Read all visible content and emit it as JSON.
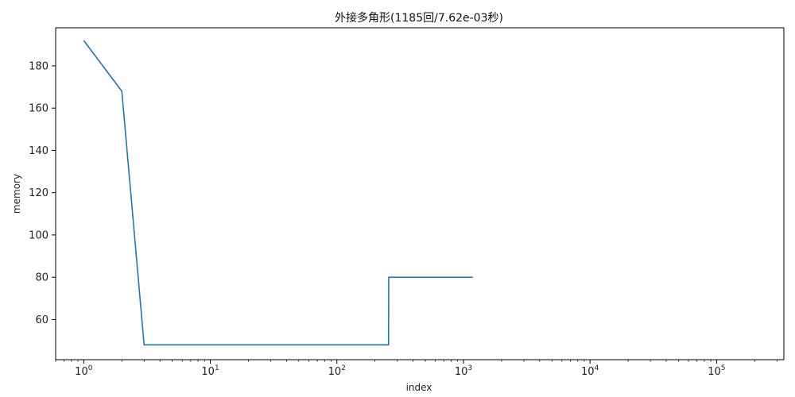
{
  "chart_data": {
    "type": "line",
    "title": "外接多角形(1185回/7.62e-03秒)",
    "xlabel": "index",
    "ylabel": "memory",
    "xscale": "log",
    "xlim": [
      0.6,
      340000
    ],
    "ylim": [
      41,
      198
    ],
    "grid": false,
    "legend": "none",
    "color": "#1f77b4",
    "x_tick_values": [
      1,
      10,
      100,
      1000,
      10000,
      100000
    ],
    "x_tick_labels": [
      {
        "base": "10",
        "exp": "0"
      },
      {
        "base": "10",
        "exp": "1"
      },
      {
        "base": "10",
        "exp": "2"
      },
      {
        "base": "10",
        "exp": "3"
      },
      {
        "base": "10",
        "exp": "4"
      },
      {
        "base": "10",
        "exp": "5"
      }
    ],
    "y_ticks": [
      60,
      80,
      100,
      120,
      140,
      160,
      180
    ],
    "series": [
      {
        "x": [
          1,
          2,
          3,
          256,
          257,
          1185
        ],
        "y": [
          192,
          168,
          48,
          48,
          80,
          80
        ]
      }
    ]
  }
}
